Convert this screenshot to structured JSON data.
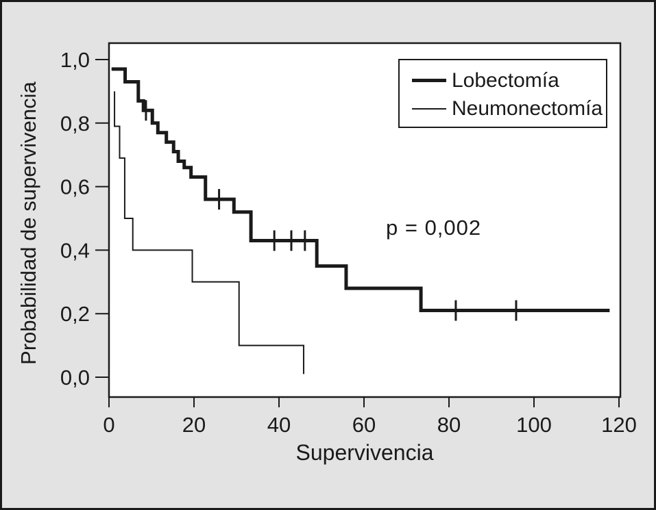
{
  "figure": {
    "background_color": "#e3e3e3",
    "plot_background_color": "#ffffff",
    "line_color": "#1a1a1a",
    "border_color": "#1a1a1a"
  },
  "chart_data": {
    "type": "line",
    "subtype": "kaplan-meier-step",
    "title": "",
    "xlabel": "Supervivencia",
    "ylabel": "Probabilidad de supervivencia",
    "xlim": [
      0,
      120
    ],
    "ylim": [
      0.0,
      1.0
    ],
    "grid": false,
    "legend_position": "top-right",
    "x_ticks": [
      0,
      20,
      40,
      60,
      80,
      100,
      120
    ],
    "x_tick_labels": [
      "0",
      "20",
      "40",
      "60",
      "80",
      "100",
      "120"
    ],
    "y_ticks": [
      1.0,
      0.8,
      0.6,
      0.4,
      0.2,
      0.0
    ],
    "y_tick_labels": [
      "1,0",
      "0,8",
      "0,6",
      "0,4",
      "0,2",
      "0,0"
    ],
    "annotation": {
      "text": "p = 0,002",
      "x": 77,
      "y": 0.47
    },
    "series": [
      {
        "name": "Lobectomía",
        "style": "thick",
        "stroke_width": 5,
        "start": [
          0.6,
          0.97
        ],
        "steps": [
          [
            3.8,
            0.93
          ],
          [
            6.9,
            0.87
          ],
          [
            8.1,
            0.84
          ],
          [
            10.2,
            0.8
          ],
          [
            11.5,
            0.77
          ],
          [
            13.5,
            0.74
          ],
          [
            15.2,
            0.71
          ],
          [
            16.3,
            0.68
          ],
          [
            17.7,
            0.66
          ],
          [
            19.3,
            0.63
          ],
          [
            22.7,
            0.56
          ],
          [
            29.4,
            0.52
          ],
          [
            33.4,
            0.43
          ],
          [
            48.9,
            0.35
          ],
          [
            55.8,
            0.28
          ],
          [
            73.4,
            0.21
          ]
        ],
        "end_time": 117.8,
        "censor_marks": [
          [
            8.7,
            0.84
          ],
          [
            25.9,
            0.56
          ],
          [
            38.9,
            0.43
          ],
          [
            42.9,
            0.43
          ],
          [
            46.1,
            0.43
          ],
          [
            81.6,
            0.21
          ],
          [
            95.8,
            0.21
          ]
        ]
      },
      {
        "name": "Neumonectomía",
        "style": "thin",
        "stroke_width": 2,
        "start": [
          1.3,
          0.9
        ],
        "steps": [
          [
            1.3,
            0.79
          ],
          [
            2.5,
            0.69
          ],
          [
            3.7,
            0.5
          ],
          [
            5.6,
            0.4
          ],
          [
            19.6,
            0.3
          ],
          [
            30.6,
            0.1
          ],
          [
            45.8,
            0.01
          ]
        ],
        "end_time": 45.8,
        "censor_marks": []
      }
    ]
  },
  "legend": {
    "items": [
      {
        "label": "Lobectomía",
        "swatch": "thick-line"
      },
      {
        "label": "Neumonectomía",
        "swatch": "thin-line"
      }
    ]
  }
}
